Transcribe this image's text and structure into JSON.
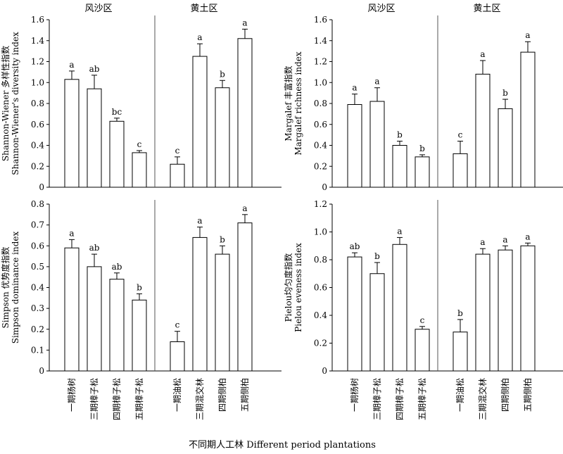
{
  "x_title": "不同期人工林 Different period plantations",
  "categories": [
    "一期杨树",
    "三期樟子松",
    "四期樟子松",
    "五期樟子松",
    "一期油松",
    "三期混交林",
    "四期侧柏",
    "五期侧柏"
  ],
  "groups": [
    "风沙区",
    "黄土区"
  ],
  "chart_data": [
    {
      "type": "bar",
      "ylabel_cn": "Shannon-Wiener 多样性指数",
      "ylabel_en": "Shannon-Wiener's diversity index",
      "ylim": [
        0,
        1.6
      ],
      "yticks": [
        "0",
        "0.2",
        "0.4",
        "0.6",
        "0.8",
        "1.0",
        "1.2",
        "1.4",
        "1.6"
      ],
      "groups": [
        "风沙区",
        "黄土区"
      ],
      "values": [
        1.03,
        0.94,
        0.63,
        0.33,
        0.22,
        1.25,
        0.95,
        1.42
      ],
      "errors": [
        0.08,
        0.13,
        0.03,
        0.02,
        0.07,
        0.12,
        0.07,
        0.09
      ],
      "letters": [
        "a",
        "ab",
        "bc",
        "c",
        "c",
        "a",
        "b",
        "a"
      ]
    },
    {
      "type": "bar",
      "ylabel_cn": "Margalef 丰富指数",
      "ylabel_en": "Margalef richness index",
      "ylim": [
        0,
        1.6
      ],
      "yticks": [
        "0",
        "0.2",
        "0.4",
        "0.6",
        "0.8",
        "1.0",
        "1.2",
        "1.4",
        "1.6"
      ],
      "groups": [
        "风沙区",
        "黄土区"
      ],
      "values": [
        0.79,
        0.82,
        0.4,
        0.29,
        0.32,
        1.08,
        0.75,
        1.29
      ],
      "errors": [
        0.1,
        0.13,
        0.04,
        0.02,
        0.12,
        0.13,
        0.09,
        0.1
      ],
      "letters": [
        "a",
        "a",
        "b",
        "b",
        "c",
        "a",
        "b",
        "a"
      ]
    },
    {
      "type": "bar",
      "ylabel_cn": "Simpson 优势度指数",
      "ylabel_en": "Simpson dominance index",
      "ylim": [
        0,
        0.8
      ],
      "yticks": [
        "0",
        "0.1",
        "0.2",
        "0.3",
        "0.4",
        "0.5",
        "0.6",
        "0.7",
        "0.8"
      ],
      "groups": [
        "",
        ""
      ],
      "values": [
        0.59,
        0.5,
        0.44,
        0.34,
        0.14,
        0.64,
        0.56,
        0.71
      ],
      "errors": [
        0.04,
        0.06,
        0.03,
        0.03,
        0.05,
        0.05,
        0.04,
        0.04
      ],
      "letters": [
        "a",
        "ab",
        "ab",
        "b",
        "c",
        "a",
        "b",
        "a"
      ]
    },
    {
      "type": "bar",
      "ylabel_cn": "Pielou均匀度指数",
      "ylabel_en": "Pielou eveness index",
      "ylim": [
        0,
        1.2
      ],
      "yticks": [
        "0",
        "0.2",
        "0.4",
        "0.6",
        "0.8",
        "1.0",
        "1.2"
      ],
      "groups": [
        "",
        ""
      ],
      "values": [
        0.82,
        0.7,
        0.91,
        0.3,
        0.28,
        0.84,
        0.87,
        0.9
      ],
      "errors": [
        0.03,
        0.08,
        0.05,
        0.02,
        0.09,
        0.04,
        0.03,
        0.02
      ],
      "letters": [
        "ab",
        "b",
        "a",
        "c",
        "b",
        "a",
        "a",
        "a"
      ]
    }
  ]
}
